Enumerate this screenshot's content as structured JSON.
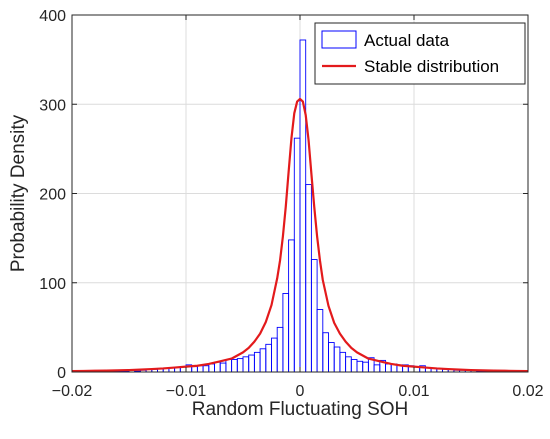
{
  "chart_data": {
    "type": "bar",
    "title": "",
    "xlabel": "Random Fluctuating SOH",
    "ylabel": "Probability Density",
    "xlim": [
      -0.02,
      0.02
    ],
    "ylim": [
      0,
      400
    ],
    "xticks": [
      -0.02,
      -0.01,
      0,
      0.01,
      0.02
    ],
    "xtick_labels": [
      "−0.02",
      "−0.01",
      "0",
      "0.01",
      "0.02"
    ],
    "yticks": [
      0,
      100,
      200,
      300,
      400
    ],
    "ytick_labels": [
      "0",
      "100",
      "200",
      "300",
      "400"
    ],
    "grid": true,
    "legend_position": "top-right",
    "bin_width": 0.0005,
    "series": [
      {
        "name": "Actual data",
        "kind": "histogram",
        "color": "#0000ff",
        "bin_centers": [
          -0.01675,
          -0.01625,
          -0.01575,
          -0.01525,
          -0.01475,
          -0.01425,
          -0.01375,
          -0.01325,
          -0.01275,
          -0.01225,
          -0.01175,
          -0.01125,
          -0.01075,
          -0.01025,
          -0.00975,
          -0.00925,
          -0.00875,
          -0.00825,
          -0.00775,
          -0.00725,
          -0.00675,
          -0.00625,
          -0.00575,
          -0.00525,
          -0.00475,
          -0.00425,
          -0.00375,
          -0.00325,
          -0.00275,
          -0.00225,
          -0.00175,
          -0.00125,
          -0.00075,
          -0.00025,
          0.00025,
          0.00075,
          0.00125,
          0.00175,
          0.00225,
          0.00275,
          0.00325,
          0.00375,
          0.00425,
          0.00475,
          0.00525,
          0.00575,
          0.00625,
          0.00675,
          0.00725,
          0.00775,
          0.00825,
          0.00875,
          0.00925,
          0.00975,
          0.01025,
          0.01075,
          0.01125,
          0.01175,
          0.01225,
          0.01275,
          0.01325,
          0.01375,
          0.01425,
          0.01475,
          0.01525,
          0.01575,
          0.01625,
          0.01675
        ],
        "values": [
          1,
          1,
          1,
          1,
          2,
          1,
          2,
          3,
          3,
          4,
          4,
          5,
          5,
          6,
          8,
          6,
          7,
          7,
          9,
          11,
          10,
          14,
          14,
          15,
          17,
          19,
          22,
          26,
          31,
          38,
          50,
          88,
          148,
          262,
          372,
          210,
          126,
          70,
          44,
          33,
          28,
          22,
          17,
          14,
          12,
          11,
          16,
          8,
          13,
          9,
          9,
          8,
          8,
          7,
          6,
          7,
          5,
          4,
          4,
          3,
          3,
          2,
          2,
          2,
          2,
          1,
          1,
          1
        ]
      },
      {
        "name": "Stable distribution",
        "kind": "line",
        "color": "#e31a1c",
        "x": [
          -0.02,
          -0.019,
          -0.018,
          -0.017,
          -0.016,
          -0.015,
          -0.014,
          -0.013,
          -0.012,
          -0.011,
          -0.01,
          -0.009,
          -0.008,
          -0.007,
          -0.006,
          -0.005,
          -0.0045,
          -0.004,
          -0.0035,
          -0.003,
          -0.0025,
          -0.002,
          -0.00175,
          -0.0015,
          -0.00125,
          -0.001,
          -0.00075,
          -0.0005,
          -0.00025,
          0,
          0.00025,
          0.0005,
          0.00075,
          0.001,
          0.00125,
          0.0015,
          0.00175,
          0.002,
          0.0025,
          0.003,
          0.0035,
          0.004,
          0.0045,
          0.005,
          0.006,
          0.007,
          0.008,
          0.009,
          0.01,
          0.011,
          0.012,
          0.013,
          0.014,
          0.015,
          0.016,
          0.017,
          0.018,
          0.019,
          0.02
        ],
        "y": [
          1,
          1.2,
          1.4,
          1.6,
          1.9,
          2.2,
          2.7,
          3.3,
          4,
          5,
          6,
          7,
          9,
          12,
          15,
          22,
          27,
          34,
          43,
          56,
          75,
          105,
          125,
          152,
          185,
          224,
          262,
          290,
          303,
          306,
          303,
          288,
          260,
          222,
          185,
          152,
          125,
          103,
          74,
          55,
          43,
          34,
          27,
          22,
          15,
          12,
          9,
          7,
          6,
          5,
          4,
          3.3,
          2.7,
          2.2,
          1.9,
          1.6,
          1.4,
          1.2,
          1
        ]
      }
    ]
  }
}
